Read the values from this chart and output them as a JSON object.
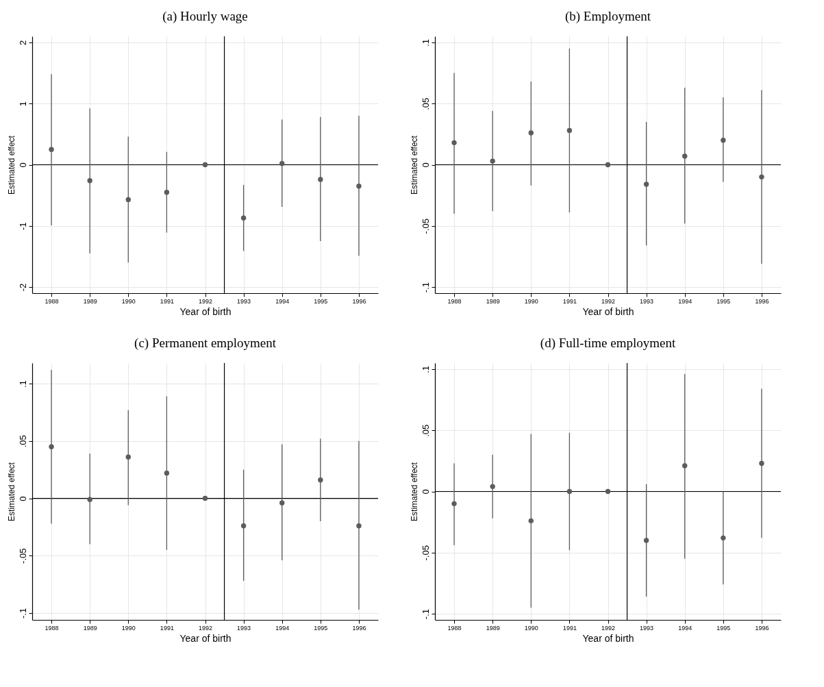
{
  "chart_data": [
    {
      "type": "scatter",
      "title": "(a) Hourly wage",
      "xlabel": "Year of birth",
      "ylabel": "Estimated effect",
      "x": [
        1988,
        1989,
        1990,
        1991,
        1992,
        1993,
        1994,
        1995,
        1996
      ],
      "xlim": [
        1987.5,
        1996.5
      ],
      "xticks": [
        1988,
        1989,
        1990,
        1991,
        1992,
        1993,
        1994,
        1995,
        1996
      ],
      "ylim": [
        -2.1,
        2.1
      ],
      "yticks": [
        -2,
        -1,
        0,
        1,
        2
      ],
      "grid": true,
      "marker": "circle",
      "series": [
        {
          "color": "#5c5c5c",
          "values": [
            0.25,
            -0.26,
            -0.57,
            -0.45,
            0,
            -0.87,
            0.02,
            -0.24,
            -0.35
          ],
          "errors": [
            [
              -0.99,
              1.48
            ],
            [
              -1.45,
              0.92
            ],
            [
              -1.6,
              0.46
            ],
            [
              -1.11,
              0.21
            ],
            null,
            [
              -1.41,
              -0.33
            ],
            [
              -0.69,
              0.74
            ],
            [
              -1.25,
              0.78
            ],
            [
              -1.49,
              0.8
            ]
          ]
        }
      ],
      "ref_lines": [
        {
          "axis": "x",
          "value": 1992.5,
          "color": "#000000"
        },
        {
          "axis": "y",
          "value": 0,
          "color": "#000000"
        }
      ]
    },
    {
      "type": "scatter",
      "title": "(b) Employment",
      "xlabel": "Year of birth",
      "ylabel": "Estimated effect",
      "x": [
        1988,
        1989,
        1990,
        1991,
        1992,
        1993,
        1994,
        1995,
        1996
      ],
      "xlim": [
        1987.5,
        1996.5
      ],
      "xticks": [
        1988,
        1989,
        1990,
        1991,
        1992,
        1993,
        1994,
        1995,
        1996
      ],
      "ylim": [
        -0.105,
        0.105
      ],
      "yticks": [
        {
          "value": -0.1,
          "label": "-.1"
        },
        {
          "value": -0.05,
          "label": "-.05"
        },
        0,
        {
          "value": 0.05,
          "label": ".05"
        },
        {
          "value": 0.1,
          "label": ".1"
        }
      ],
      "grid": true,
      "marker": "circle",
      "series": [
        {
          "color": "#5c5c5c",
          "values": [
            0.018,
            0.003,
            0.026,
            0.028,
            0,
            -0.016,
            0.007,
            0.02,
            -0.01
          ],
          "errors": [
            [
              -0.04,
              0.075
            ],
            [
              -0.038,
              0.044
            ],
            [
              -0.017,
              0.068
            ],
            [
              -0.039,
              0.095
            ],
            null,
            [
              -0.066,
              0.035
            ],
            [
              -0.048,
              0.063
            ],
            [
              -0.014,
              0.055
            ],
            [
              -0.081,
              0.061
            ]
          ]
        }
      ],
      "ref_lines": [
        {
          "axis": "x",
          "value": 1992.5,
          "color": "#000000"
        },
        {
          "axis": "y",
          "value": 0,
          "color": "#000000"
        }
      ]
    },
    {
      "type": "scatter",
      "title": "(c) Permanent employment",
      "xlabel": "Year of birth",
      "ylabel": "Estimated effect",
      "x": [
        1988,
        1989,
        1990,
        1991,
        1992,
        1993,
        1994,
        1995,
        1996
      ],
      "xlim": [
        1987.5,
        1996.5
      ],
      "xticks": [
        1988,
        1989,
        1990,
        1991,
        1992,
        1993,
        1994,
        1995,
        1996
      ],
      "ylim": [
        -0.106,
        0.118
      ],
      "yticks": [
        {
          "value": -0.1,
          "label": "-.1"
        },
        {
          "value": -0.05,
          "label": "-.05"
        },
        0,
        {
          "value": 0.05,
          "label": ".05"
        },
        {
          "value": 0.1,
          "label": ".1"
        }
      ],
      "grid": true,
      "marker": "circle",
      "series": [
        {
          "color": "#5c5c5c",
          "values": [
            0.045,
            -0.001,
            0.036,
            0.022,
            0,
            -0.024,
            -0.004,
            0.016,
            -0.024
          ],
          "errors": [
            [
              -0.022,
              0.112
            ],
            [
              -0.04,
              0.039
            ],
            [
              -0.006,
              0.077
            ],
            [
              -0.045,
              0.089
            ],
            null,
            [
              -0.072,
              0.025
            ],
            [
              -0.054,
              0.047
            ],
            [
              -0.02,
              0.052
            ],
            [
              -0.097,
              0.05
            ]
          ]
        }
      ],
      "ref_lines": [
        {
          "axis": "x",
          "value": 1992.5,
          "color": "#000000"
        },
        {
          "axis": "y",
          "value": 0,
          "color": "#000000"
        }
      ]
    },
    {
      "type": "scatter",
      "title": "(d) Full-time employment",
      "xlabel": "Year of birth",
      "ylabel": "Estimated effect",
      "x": [
        1988,
        1989,
        1990,
        1991,
        1992,
        1993,
        1994,
        1995,
        1996
      ],
      "xlim": [
        1987.5,
        1996.5
      ],
      "xticks": [
        1988,
        1989,
        1990,
        1991,
        1992,
        1993,
        1994,
        1995,
        1996
      ],
      "ylim": [
        -0.105,
        0.105
      ],
      "yticks": [
        {
          "value": -0.1,
          "label": "-.1"
        },
        {
          "value": -0.05,
          "label": "-.05"
        },
        0,
        {
          "value": 0.05,
          "label": ".05"
        },
        {
          "value": 0.1,
          "label": ".1"
        }
      ],
      "grid": true,
      "marker": "circle",
      "series": [
        {
          "color": "#5c5c5c",
          "values": [
            -0.01,
            0.004,
            -0.024,
            0,
            0,
            -0.04,
            0.021,
            -0.038,
            0.023
          ],
          "errors": [
            [
              -0.044,
              0.023
            ],
            [
              -0.022,
              0.03
            ],
            [
              -0.095,
              0.047
            ],
            [
              -0.048,
              0.048
            ],
            null,
            [
              -0.086,
              0.006
            ],
            [
              -0.055,
              0.096
            ],
            [
              -0.076,
              0
            ],
            [
              -0.038,
              0.084
            ]
          ]
        }
      ],
      "ref_lines": [
        {
          "axis": "x",
          "value": 1992.5,
          "color": "#000000"
        },
        {
          "axis": "y",
          "value": 0,
          "color": "#000000"
        }
      ]
    }
  ]
}
